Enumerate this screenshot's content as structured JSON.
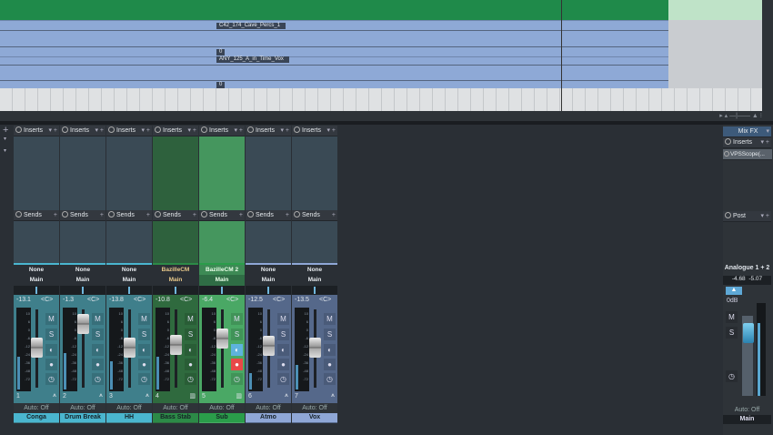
{
  "arrange": {
    "clips": [
      "C42_174_Cave_Percs_1",
      "ANY_125_A_in_Time_Vox"
    ],
    "clip_marker": "0"
  },
  "labels": {
    "inserts": "Inserts",
    "sends": "Sends",
    "auto": "Auto: Off",
    "pan": "<C>"
  },
  "channels": [
    {
      "num": "1",
      "name": "Conga",
      "input": "None",
      "output": "Main",
      "volume": "-13.1",
      "type": "audio",
      "color": "#3f7f8b",
      "strip": "#4ab6cf",
      "fader": 0.55,
      "level": 0.4
    },
    {
      "num": "2",
      "name": "Drum Break",
      "input": "None",
      "output": "Main",
      "volume": "-1.3",
      "type": "audio",
      "color": "#3f7f8b",
      "strip": "#4ab6cf",
      "fader": 0.85,
      "level": 0.45
    },
    {
      "num": "3",
      "name": "HH",
      "input": "None",
      "output": "Main",
      "volume": "-13.8",
      "type": "audio",
      "color": "#3f7f8b",
      "strip": "#4ab6cf",
      "fader": 0.55,
      "level": 0.35
    },
    {
      "num": "4",
      "name": "Bass Stab",
      "input": "BazilleCM",
      "output": "Main",
      "volume": "-10.8",
      "type": "instrument",
      "color": "#2f6a3e",
      "strip": "#2c8a47",
      "fader": 0.58,
      "level": 0.4
    },
    {
      "num": "5",
      "name": "Sub",
      "input": "BazilleCM 2",
      "output": "Main",
      "volume": "-6.4",
      "type": "instrument",
      "color": "#4aa865",
      "strip": "#2a9d4a",
      "fader": 0.66,
      "level": 0.0,
      "monitor": true,
      "record": true
    },
    {
      "num": "6",
      "name": "Atmo",
      "input": "None",
      "output": "Main",
      "volume": "-12.5",
      "type": "audio",
      "color": "#55688a",
      "strip": "#8fa7d6",
      "fader": 0.57,
      "level": 0.2
    },
    {
      "num": "7",
      "name": "Vox",
      "input": "None",
      "output": "Main",
      "volume": "-13.5",
      "type": "audio",
      "color": "#55688a",
      "strip": "#8fa7d6",
      "fader": 0.55,
      "level": 0.3
    }
  ],
  "meter_ticks": [
    "10",
    "6",
    "0",
    "-6",
    "-12",
    "-24",
    "-36",
    "-48",
    "-72"
  ],
  "mix_fx": {
    "title": "Mix FX",
    "inserts": "Inserts",
    "plugin": "VPSScope(...",
    "post": "Post"
  },
  "main": {
    "output": "Analogue 1 + 2",
    "peak_l": "-4.68",
    "peak_r": "-5.07",
    "volume": "0dB",
    "auto": "Auto: Off",
    "name": "Main"
  }
}
